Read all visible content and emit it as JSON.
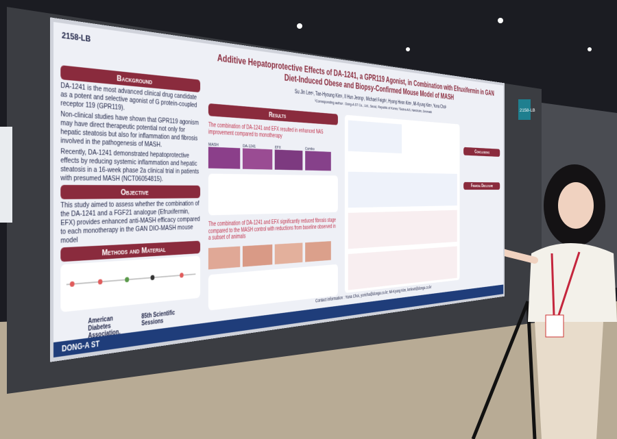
{
  "poster": {
    "id": "2158-LB",
    "board_tag": "2158-LB",
    "title": "Additive Hepatoprotective Effects of DA-1241, a GPR119 Agonist, in Combination with Efruxifermin in GAN Diet-Induced Obese and Biopsy-Confirmed Mouse Model of MASH",
    "authors": "Su Jin Lee¹, Tae-Hyoung Kim¹, Il Hun Jeong¹, Michael Feigh², Hyung Heon Kim¹, Mi-Kyung Kim¹, Yuna Choi¹",
    "affiliation": "¹Corresponding author : Dong-A ST Co., Ltd., Seoul, Republic of Korea; ²Gubra A/S, Hørsholm, Denmark",
    "background": {
      "heading": "Background",
      "paragraphs": [
        "DA-1241 is the most advanced clinical drug candidate as a potent and selective agonist of G protein-coupled receptor 119 (GPR119).",
        "Non-clinical studies have shown that GPR119 agonism may have direct therapeutic potential not only for hepatic steatosis but also for inflammation and fibrosis involved in the pathogenesis of MASH.",
        "Recently, DA-1241 demonstrated hepatoprotective effects by reducing systemic inflammation and hepatic steatosis in a 16-week phase 2a clinical trial in patients with presumed MASH (NCT06054815)."
      ]
    },
    "objective": {
      "heading": "Objective",
      "text": "This study aimed to assess whether the combination of the DA-1241 and a FGF21 analogue (Efruxifermin, EFX) provides enhanced anti-MASH efficacy compared to each monotherapy in the GAN DIO-MASH mouse model"
    },
    "methods": {
      "heading": "Methods and Material"
    },
    "results": {
      "heading": "Results",
      "notes": [
        "The combination of DA-1241 and EFX resulted in enhanced NAS improvement compared to monotherapy",
        "The combination of DA-1241 and EFX significantly reduced fibrosis stage compared to the MASH control with reductions from baseline observed in a subset of animals"
      ],
      "panel_labels": [
        "MASH",
        "DA-1241",
        "EFX",
        "Combo"
      ]
    },
    "conclusions": {
      "heading": "Conclusions"
    },
    "financial": {
      "heading": "Financial Disclosure"
    },
    "contact": "Contact information : Yuna Choi, yoricha@donga.co.kr; Mi-Kyung Kim, kmkvet@donga.co.kr",
    "logos": {
      "ada": "American Diabetes Association.",
      "sessions": "85th Scientific Sessions",
      "company": "DONG-A ST"
    }
  }
}
